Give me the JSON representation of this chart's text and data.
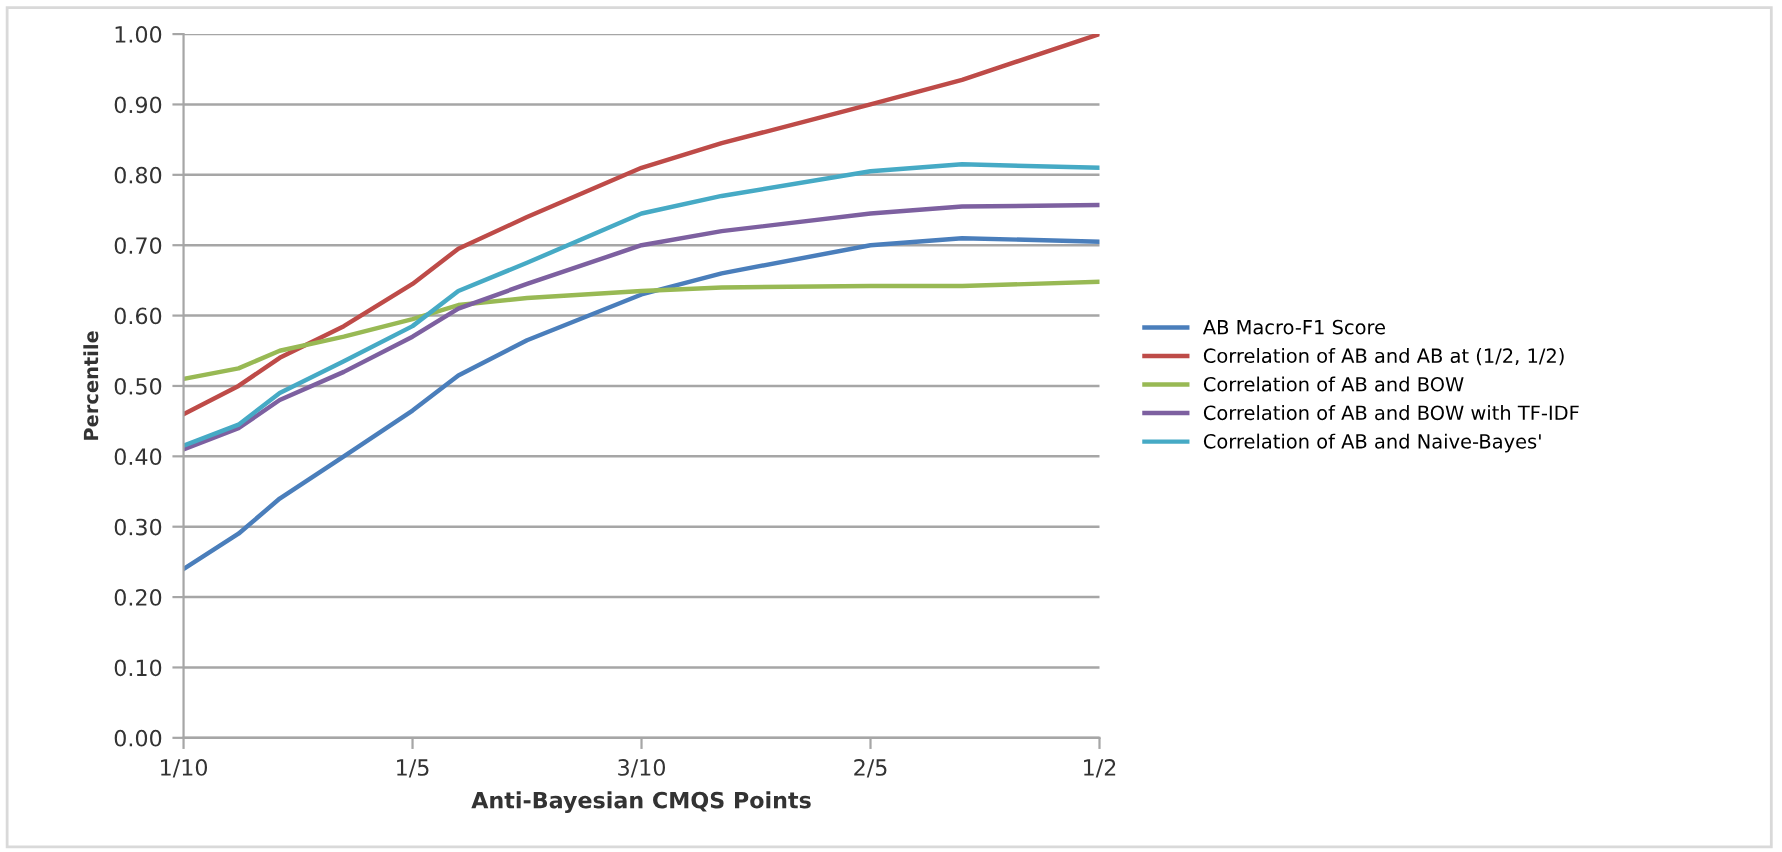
{
  "chart_data": {
    "type": "line",
    "xlabel": "Anti-Bayesian CMQS Points",
    "ylabel": "Percentile",
    "x": [
      0.1,
      0.124,
      0.142,
      0.17,
      0.2,
      0.22,
      0.25,
      0.3,
      0.335,
      0.4,
      0.44,
      0.5
    ],
    "series": [
      {
        "name": "AB Macro-F1 Score",
        "color": "#4a7ebb",
        "values": [
          0.24,
          0.29,
          0.34,
          0.4,
          0.465,
          0.515,
          0.565,
          0.63,
          0.66,
          0.7,
          0.71,
          0.705
        ]
      },
      {
        "name": "Correlation of AB and AB at (1/2, 1/2)",
        "color": "#be4b48",
        "values": [
          0.46,
          0.5,
          0.54,
          0.585,
          0.645,
          0.695,
          0.74,
          0.81,
          0.845,
          0.9,
          0.935,
          1.0
        ]
      },
      {
        "name": "Correlation of AB and BOW",
        "color": "#98b954",
        "values": [
          0.51,
          0.525,
          0.55,
          0.57,
          0.595,
          0.615,
          0.625,
          0.635,
          0.64,
          0.642,
          0.642,
          0.648
        ]
      },
      {
        "name": "Correlation of AB and BOW with TF-IDF",
        "color": "#7d60a0",
        "values": [
          0.41,
          0.44,
          0.48,
          0.52,
          0.57,
          0.61,
          0.645,
          0.7,
          0.72,
          0.745,
          0.755,
          0.757
        ]
      },
      {
        "name": "Correlation of AB and Naive-Bayes'",
        "color": "#46aac5",
        "values": [
          0.415,
          0.445,
          0.49,
          0.535,
          0.585,
          0.635,
          0.675,
          0.745,
          0.77,
          0.805,
          0.815,
          0.81
        ]
      }
    ],
    "xlim": [
      0.1,
      0.5
    ],
    "xticks": [
      {
        "value": 0.1,
        "label": "1/10"
      },
      {
        "value": 0.2,
        "label": "1/5"
      },
      {
        "value": 0.3,
        "label": "3/10"
      },
      {
        "value": 0.4,
        "label": "2/5"
      },
      {
        "value": 0.5,
        "label": "1/2"
      }
    ],
    "ylim": [
      0,
      1
    ],
    "yticks": [
      {
        "value": 0,
        "label": "0.00"
      },
      {
        "value": 0.1,
        "label": "0.10"
      },
      {
        "value": 0.2,
        "label": "0.20"
      },
      {
        "value": 0.3,
        "label": "0.30"
      },
      {
        "value": 0.4,
        "label": "0.40"
      },
      {
        "value": 0.5,
        "label": "0.50"
      },
      {
        "value": 0.6,
        "label": "0.60"
      },
      {
        "value": 0.7,
        "label": "0.70"
      },
      {
        "value": 0.8,
        "label": "0.80"
      },
      {
        "value": 0.9,
        "label": "0.90"
      },
      {
        "value": 1,
        "label": "1.00"
      }
    ],
    "grid": "y",
    "legend": "right",
    "marker": "none",
    "line_style": "solid"
  }
}
